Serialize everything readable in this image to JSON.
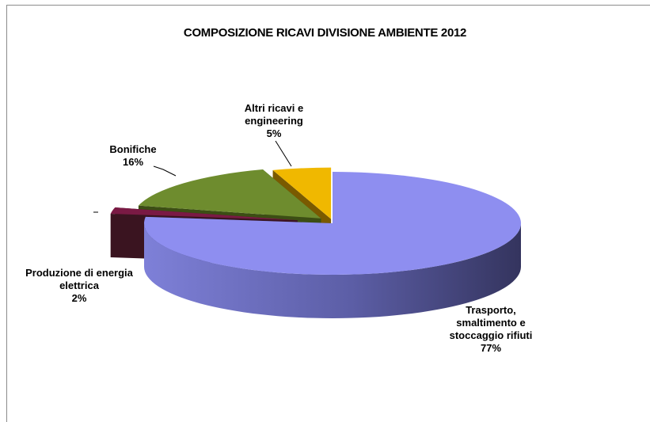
{
  "chart_data": {
    "type": "pie",
    "title": "COMPOSIZIONE RICAVI DIVISIONE AMBIENTE 2012",
    "categories": [
      "Trasporto, smaltimento e stoccaggio rifiuti",
      "Produzione di energia elettrica",
      "Bonifiche",
      "Altri ricavi e engineering"
    ],
    "values": [
      77,
      2,
      16,
      5
    ],
    "value_labels": [
      "77%",
      "2%",
      "16%",
      "5%"
    ],
    "label_lines": [
      [
        "Trasporto,",
        "smaltimento e",
        "stoccaggio rifiuti"
      ],
      [
        "Produzione di energia",
        "elettrica"
      ],
      [
        "Bonifiche"
      ],
      [
        "Altri ricavi e",
        "engineering"
      ]
    ],
    "colors": [
      "#8e8ef0",
      "#7a1a44",
      "#6e8c2e",
      "#f0b800"
    ],
    "side_colors": [
      "#3a3a6a",
      "#3a1420",
      "#3c4e14",
      "#7a5a00"
    ],
    "three_d": true,
    "exploded": true,
    "legend": "none"
  }
}
